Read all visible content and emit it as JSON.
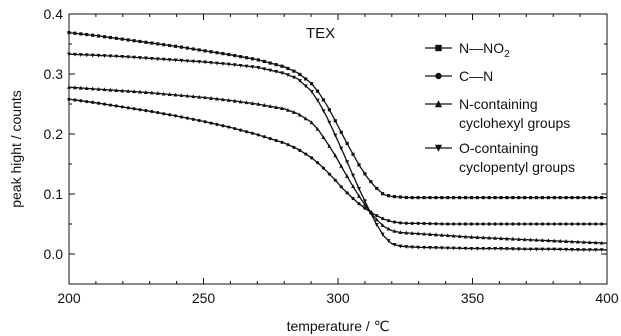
{
  "chart_data": {
    "type": "line",
    "title": "",
    "annotation": "TEX",
    "xlabel": "temperature / ℃",
    "ylabel": "peak hight / counts",
    "xlim": [
      200,
      400
    ],
    "ylim": [
      -0.05,
      0.4
    ],
    "xticks": [
      200,
      250,
      300,
      350,
      400
    ],
    "xtick_labels": [
      "200",
      "250",
      "300",
      "350",
      "400"
    ],
    "yticks": [
      0.0,
      0.1,
      0.2,
      0.3,
      0.4
    ],
    "ytick_labels": [
      "0.0",
      "0.1",
      "0.2",
      "0.3",
      "0.4"
    ],
    "grid": false,
    "legend_position": "top-right",
    "x": [
      200,
      210,
      220,
      230,
      240,
      250,
      260,
      270,
      280,
      285,
      290,
      293,
      296,
      299,
      302,
      305,
      308,
      311,
      314,
      317,
      320,
      323,
      326,
      330,
      340,
      350,
      360,
      370,
      380,
      390,
      400
    ],
    "series": [
      {
        "name": "N—NO₂",
        "legend_main": "N—NO",
        "legend_sub": "2",
        "marker": "square",
        "values": [
          0.369,
          0.364,
          0.358,
          0.352,
          0.346,
          0.339,
          0.332,
          0.324,
          0.312,
          0.302,
          0.285,
          0.268,
          0.247,
          0.222,
          0.196,
          0.171,
          0.147,
          0.127,
          0.111,
          0.099,
          0.096,
          0.095,
          0.094,
          0.094,
          0.094,
          0.094,
          0.094,
          0.094,
          0.094,
          0.094,
          0.094
        ]
      },
      {
        "name": "C—N",
        "legend_main": "C—N",
        "legend_sub": "",
        "marker": "circle",
        "values": [
          0.258,
          0.252,
          0.245,
          0.238,
          0.23,
          0.221,
          0.211,
          0.199,
          0.185,
          0.175,
          0.161,
          0.15,
          0.137,
          0.123,
          0.108,
          0.095,
          0.083,
          0.073,
          0.065,
          0.058,
          0.054,
          0.052,
          0.051,
          0.051,
          0.05,
          0.05,
          0.05,
          0.05,
          0.05,
          0.05,
          0.05
        ]
      },
      {
        "name": "N-containing cyclohexyl groups",
        "legend_main": "N-containing",
        "legend_main2": "cyclohexyl groups",
        "legend_sub": "",
        "marker": "triangle-up",
        "values": [
          0.278,
          0.275,
          0.272,
          0.269,
          0.265,
          0.261,
          0.256,
          0.25,
          0.242,
          0.234,
          0.22,
          0.205,
          0.185,
          0.164,
          0.14,
          0.117,
          0.095,
          0.076,
          0.059,
          0.046,
          0.039,
          0.036,
          0.035,
          0.034,
          0.031,
          0.028,
          0.026,
          0.024,
          0.022,
          0.02,
          0.018
        ]
      },
      {
        "name": "O-containing cyclopentyl groups",
        "legend_main": "O-containing",
        "legend_main2": "cyclopentyl groups",
        "legend_sub": "",
        "marker": "triangle-down",
        "values": [
          0.333,
          0.331,
          0.329,
          0.326,
          0.323,
          0.32,
          0.316,
          0.311,
          0.301,
          0.292,
          0.272,
          0.252,
          0.227,
          0.198,
          0.168,
          0.137,
          0.107,
          0.079,
          0.052,
          0.03,
          0.017,
          0.013,
          0.012,
          0.011,
          0.01,
          0.009,
          0.009,
          0.008,
          0.008,
          0.007,
          0.007
        ]
      }
    ]
  }
}
